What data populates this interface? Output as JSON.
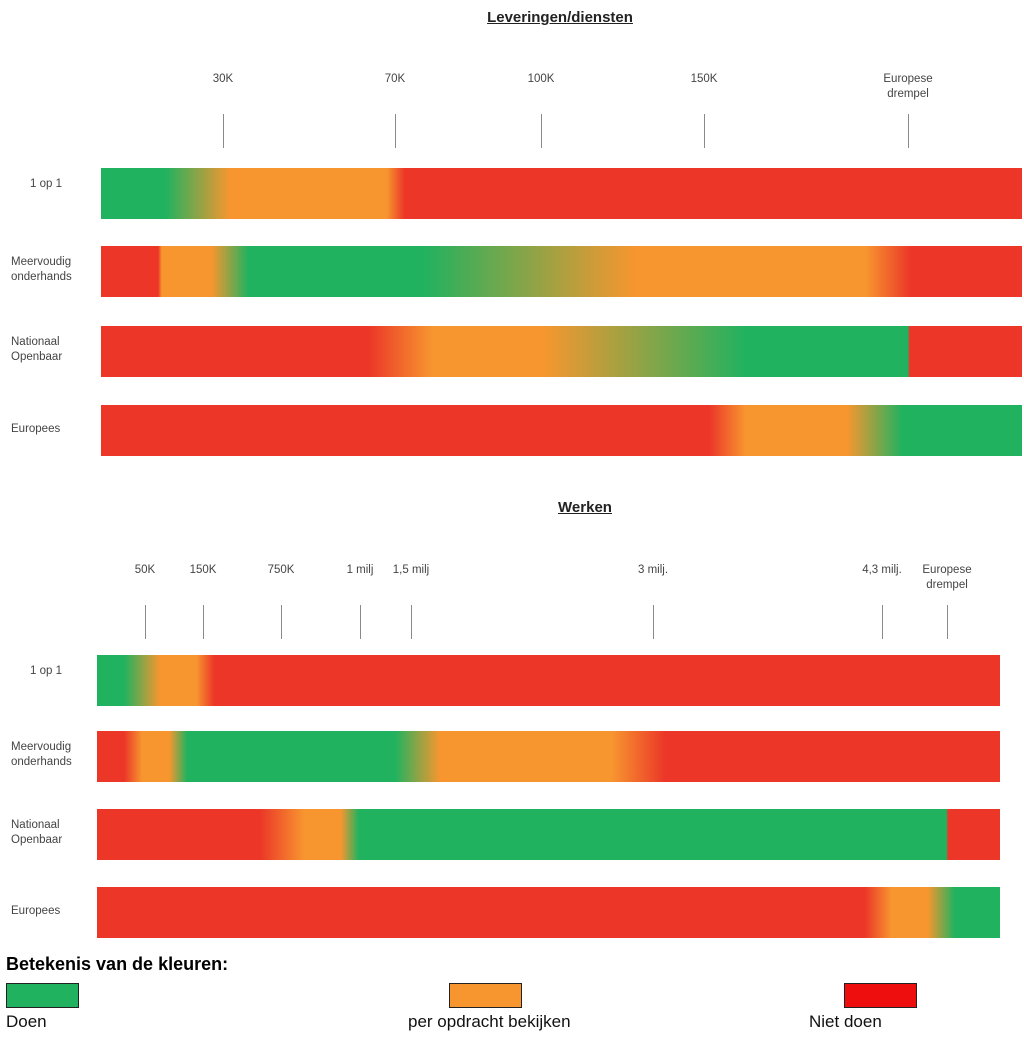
{
  "colors": {
    "doen": "#21b25f",
    "bekijken": "#f7962f",
    "niet_doen": "#eb3628",
    "legend_red": "#ee0e0e"
  },
  "chart_data": [
    {
      "type": "bar",
      "title": "Leveringen/diensten",
      "ticks": [
        "30K",
        "70K",
        "100K",
        "150K",
        "Europese\ndrempel"
      ],
      "rows": [
        {
          "label": "1 op 1",
          "stops": [
            [
              "green",
              0
            ],
            [
              "green",
              7
            ],
            [
              "orange",
              14
            ],
            [
              "orange",
              31
            ],
            [
              "red",
              33
            ],
            [
              "red",
              100
            ]
          ]
        },
        {
          "label": "Meervoudig\nonderhands",
          "stops": [
            [
              "red",
              0
            ],
            [
              "red",
              6.2
            ],
            [
              "orange",
              6.6
            ],
            [
              "orange",
              12
            ],
            [
              "green",
              16
            ],
            [
              "green",
              35
            ],
            [
              "orange",
              58
            ],
            [
              "orange",
              83
            ],
            [
              "red",
              88
            ],
            [
              "red",
              100
            ]
          ]
        },
        {
          "label": "Nationaal\nOpenbaar",
          "stops": [
            [
              "red",
              0
            ],
            [
              "red",
              29
            ],
            [
              "orange",
              36
            ],
            [
              "orange",
              48
            ],
            [
              "green",
              70
            ],
            [
              "green",
              87.6
            ],
            [
              "red",
              87.8
            ],
            [
              "red",
              100
            ]
          ]
        },
        {
          "label": "Europees",
          "stops": [
            [
              "red",
              0
            ],
            [
              "red",
              66
            ],
            [
              "orange",
              70
            ],
            [
              "orange",
              81
            ],
            [
              "green",
              87
            ],
            [
              "green",
              100
            ]
          ]
        }
      ]
    },
    {
      "type": "bar",
      "title": "Werken",
      "ticks": [
        "50K",
        "150K",
        "750K",
        "1 milj",
        "1,5 milj",
        "3 milj.",
        "4,3 milj.",
        "Europese\ndrempel"
      ],
      "rows": [
        {
          "label": "1 op 1",
          "stops": [
            [
              "green",
              0
            ],
            [
              "green",
              3
            ],
            [
              "orange",
              7
            ],
            [
              "orange",
              11
            ],
            [
              "red",
              13
            ],
            [
              "red",
              100
            ]
          ]
        },
        {
          "label": "Meervoudig\nonderhands",
          "stops": [
            [
              "red",
              0
            ],
            [
              "red",
              3
            ],
            [
              "orange",
              5
            ],
            [
              "orange",
              8
            ],
            [
              "green",
              10
            ],
            [
              "green",
              33
            ],
            [
              "orange",
              38
            ],
            [
              "orange",
              57
            ],
            [
              "red",
              63
            ],
            [
              "red",
              100
            ]
          ]
        },
        {
          "label": "Nationaal\nOpenbaar",
          "stops": [
            [
              "red",
              0
            ],
            [
              "red",
              18
            ],
            [
              "orange",
              23
            ],
            [
              "orange",
              27
            ],
            [
              "green",
              29
            ],
            [
              "green",
              94
            ],
            [
              "red",
              94.3
            ],
            [
              "red",
              100
            ]
          ]
        },
        {
          "label": "Europees",
          "stops": [
            [
              "red",
              0
            ],
            [
              "red",
              85
            ],
            [
              "orange",
              88
            ],
            [
              "orange",
              92
            ],
            [
              "green",
              95
            ],
            [
              "green",
              100
            ]
          ]
        }
      ]
    }
  ],
  "legend": {
    "title": "Betekenis van de kleuren:",
    "items": [
      {
        "label": "Doen",
        "color": "#21b25f"
      },
      {
        "label": "per opdracht bekijken",
        "color": "#f7962f"
      },
      {
        "label": "Niet doen",
        "color": "#ee0e0e"
      }
    ]
  }
}
